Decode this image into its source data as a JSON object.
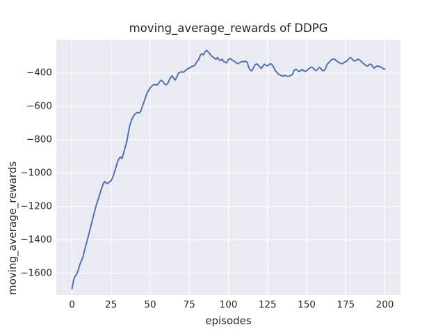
{
  "figure": {
    "title": "moving_average_rewards of DDPG",
    "xlabel": "episodes",
    "ylabel": "moving_average_rewards"
  },
  "colors": {
    "line": "#4c72b0",
    "plot_background": "#eaeaf2",
    "grid": "#ffffff",
    "text": "#262626",
    "figure_background": "#ffffff"
  },
  "chart_data": {
    "type": "line",
    "title": "moving_average_rewards of DDPG",
    "xlabel": "episodes",
    "ylabel": "moving_average_rewards",
    "legend": null,
    "grid": true,
    "xlim": [
      -10,
      210
    ],
    "ylim": [
      -1730,
      -200
    ],
    "xticks": [
      0,
      25,
      50,
      75,
      100,
      125,
      150,
      175,
      200
    ],
    "yticks": [
      -400,
      -600,
      -800,
      -1000,
      -1200,
      -1400,
      -1600
    ],
    "x": {
      "start": 0,
      "end": 200,
      "step": 1
    },
    "y": [
      -1693,
      -1642,
      -1617,
      -1606,
      -1581,
      -1548,
      -1525,
      -1503,
      -1465,
      -1428,
      -1394,
      -1358,
      -1320,
      -1282,
      -1246,
      -1210,
      -1177,
      -1149,
      -1120,
      -1090,
      -1063,
      -1050,
      -1060,
      -1061,
      -1052,
      -1046,
      -1026,
      -1000,
      -968,
      -936,
      -913,
      -903,
      -912,
      -880,
      -846,
      -812,
      -760,
      -712,
      -685,
      -664,
      -648,
      -640,
      -636,
      -640,
      -628,
      -600,
      -574,
      -546,
      -520,
      -504,
      -490,
      -478,
      -471,
      -469,
      -472,
      -467,
      -452,
      -443,
      -449,
      -463,
      -470,
      -466,
      -446,
      -428,
      -416,
      -431,
      -442,
      -424,
      -402,
      -396,
      -392,
      -396,
      -390,
      -381,
      -374,
      -371,
      -364,
      -359,
      -357,
      -347,
      -329,
      -320,
      -294,
      -284,
      -291,
      -274,
      -264,
      -273,
      -283,
      -296,
      -303,
      -311,
      -318,
      -307,
      -320,
      -326,
      -317,
      -331,
      -336,
      -338,
      -319,
      -313,
      -319,
      -326,
      -331,
      -339,
      -344,
      -339,
      -334,
      -330,
      -333,
      -328,
      -336,
      -366,
      -383,
      -386,
      -369,
      -351,
      -345,
      -351,
      -363,
      -372,
      -359,
      -348,
      -353,
      -358,
      -349,
      -344,
      -352,
      -366,
      -386,
      -396,
      -406,
      -412,
      -416,
      -418,
      -414,
      -417,
      -420,
      -417,
      -414,
      -407,
      -384,
      -377,
      -382,
      -392,
      -387,
      -379,
      -385,
      -391,
      -386,
      -377,
      -369,
      -364,
      -368,
      -379,
      -386,
      -379,
      -365,
      -372,
      -385,
      -386,
      -374,
      -349,
      -339,
      -329,
      -320,
      -316,
      -318,
      -326,
      -333,
      -339,
      -343,
      -344,
      -337,
      -331,
      -327,
      -314,
      -307,
      -315,
      -326,
      -328,
      -321,
      -317,
      -322,
      -331,
      -341,
      -348,
      -356,
      -358,
      -349,
      -347,
      -356,
      -371,
      -364,
      -357,
      -360,
      -362,
      -368,
      -374,
      -377
    ]
  }
}
